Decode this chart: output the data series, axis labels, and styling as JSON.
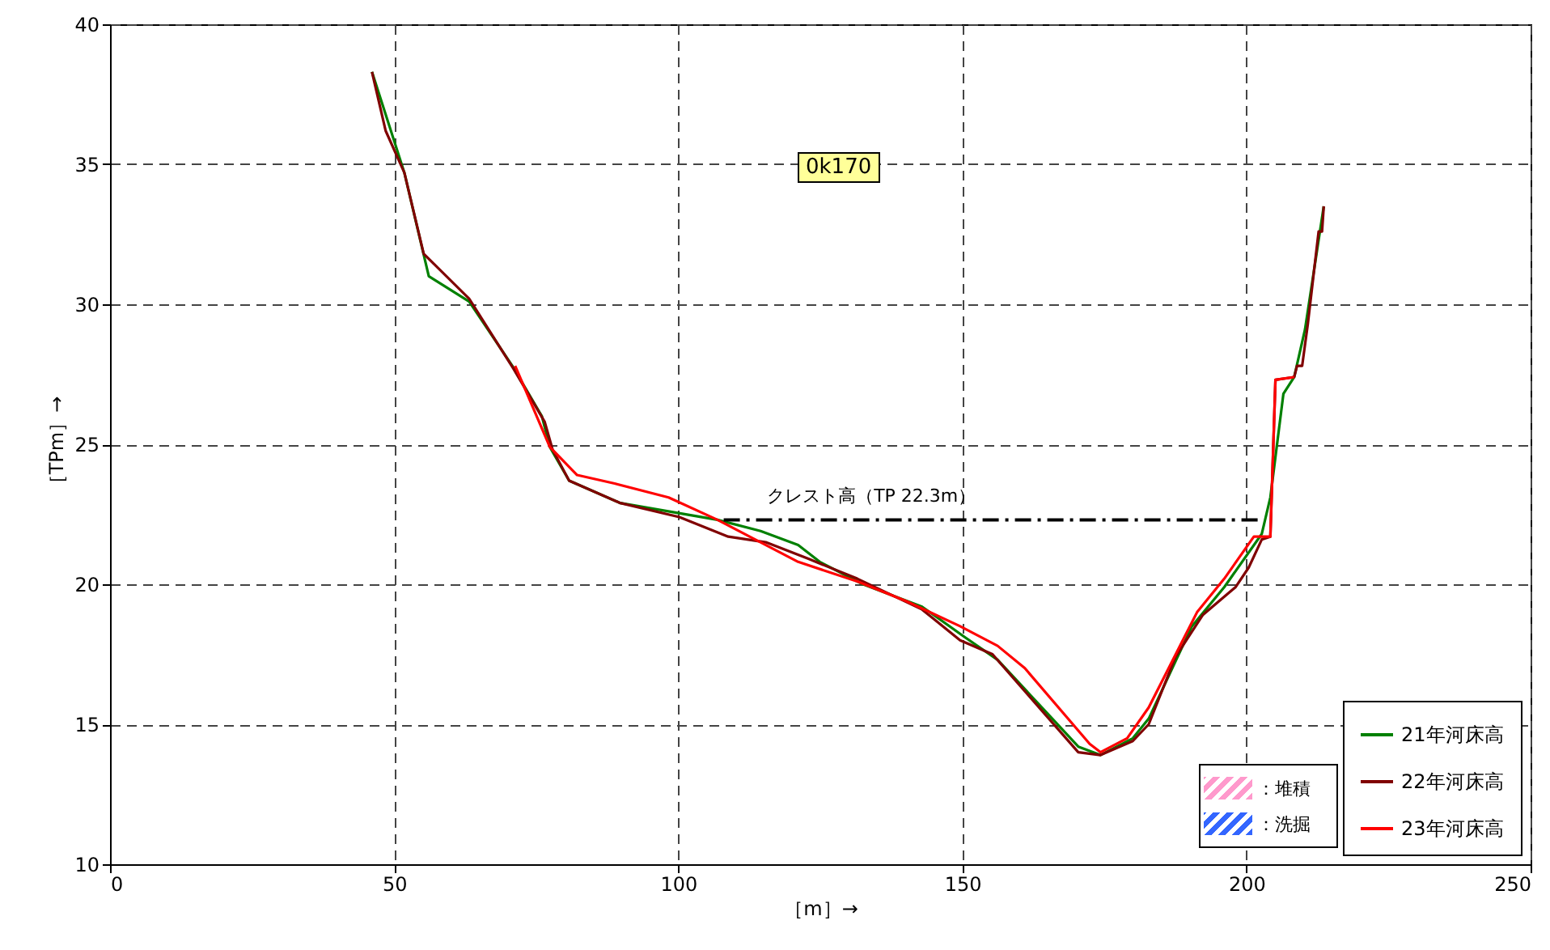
{
  "chart_data": {
    "type": "line",
    "xlabel": "［m］→",
    "ylabel": "［TPm］→",
    "xlim": [
      0,
      250
    ],
    "xticks": [
      0,
      50,
      100,
      150,
      200,
      250
    ],
    "ylim": [
      10,
      40
    ],
    "yticks": [
      10,
      15,
      20,
      25,
      30,
      35,
      40
    ],
    "grid": true,
    "legend": "bottom right",
    "line_style": "solid",
    "series": [
      {
        "name": "21年河床高",
        "color": "#008000",
        "x": [
          46.1,
          51.8,
          56.1,
          63.2,
          70.8,
          76.0,
          77.4,
          80.8,
          89.8,
          106.9,
          114.5,
          121.1,
          124.9,
          132.5,
          142.9,
          150.5,
          156.2,
          170.4,
          174.3,
          180.0,
          182.8,
          190.4,
          196.1,
          202.7,
          204.2,
          206.5,
          208.4,
          210.3,
          213.6
        ],
        "values": [
          38.3,
          34.7,
          31.0,
          30.1,
          27.8,
          26.0,
          24.9,
          23.7,
          22.9,
          22.3,
          21.9,
          21.4,
          20.8,
          20.0,
          19.2,
          18.1,
          17.3,
          14.2,
          13.9,
          14.5,
          15.2,
          18.5,
          19.9,
          21.8,
          23.1,
          26.8,
          27.4,
          29.1,
          33.5
        ]
      },
      {
        "name": "22年河床高",
        "color": "#800000",
        "x": [
          46.1,
          48.5,
          51.8,
          55.2,
          63.2,
          71.0,
          76.5,
          77.9,
          80.8,
          89.8,
          100.2,
          108.8,
          115.4,
          123.0,
          131.5,
          142.9,
          149.6,
          155.3,
          170.4,
          174.3,
          180.0,
          182.8,
          187.5,
          192.3,
          198.1,
          200.4,
          202.7,
          204.2,
          205.1,
          208.4,
          208.9,
          209.8,
          210.8,
          212.7,
          213.3,
          213.6
        ],
        "values": [
          38.3,
          36.2,
          34.7,
          31.8,
          30.2,
          27.7,
          25.8,
          24.8,
          23.7,
          22.9,
          22.4,
          21.7,
          21.5,
          20.9,
          20.2,
          19.1,
          18.0,
          17.5,
          14.0,
          13.9,
          14.4,
          15.0,
          17.4,
          18.9,
          19.9,
          20.6,
          21.6,
          21.7,
          27.3,
          27.4,
          27.8,
          27.8,
          29.3,
          32.6,
          32.6,
          33.5
        ]
      },
      {
        "name": "23年河床高",
        "color": "#ff0000",
        "x": [
          71.3,
          77.4,
          82.2,
          88.8,
          98.3,
          106.9,
          121.1,
          131.5,
          140.1,
          149.6,
          156.2,
          161.0,
          172.4,
          174.3,
          179.0,
          182.8,
          191.3,
          196.1,
          201.3,
          204.2,
          205.1,
          208.4
        ],
        "values": [
          27.8,
          24.9,
          23.9,
          23.6,
          23.1,
          22.3,
          20.8,
          20.1,
          19.4,
          18.5,
          17.8,
          17.0,
          14.3,
          14.0,
          14.5,
          15.6,
          19.0,
          20.2,
          21.7,
          21.7,
          27.3,
          27.4
        ]
      },
      {
        "type": "line",
        "color": "#000000",
        "line_style": "dashed",
        "x": [
          108,
          202
        ],
        "values": [
          22.3,
          22.3
        ]
      }
    ],
    "annotations": [
      "0k170",
      {
        "text": "クレスト高（TP 22.3m）",
        "x": 134,
        "y": 22.3
      },
      "：堆積",
      "：洗掘"
    ]
  }
}
